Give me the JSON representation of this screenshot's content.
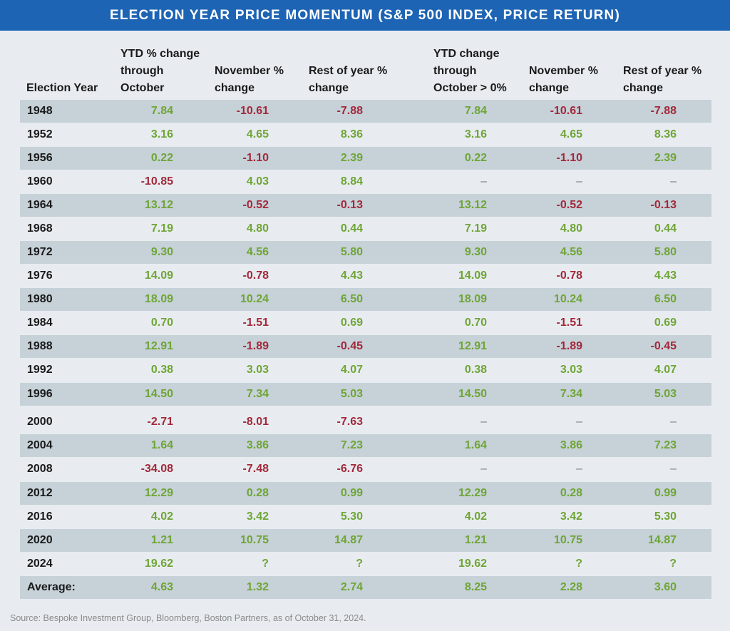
{
  "title": "ELECTION YEAR PRICE MOMENTUM (S&P 500 INDEX, PRICE RETURN)",
  "headers": [
    "Election Year",
    "YTD % change through October",
    "November % change",
    "Rest of year % change",
    "YTD change through October > 0%",
    "November % change",
    "Rest of year % change"
  ],
  "rows": [
    [
      "1948",
      "7.84",
      "-10.61",
      "-7.88",
      "7.84",
      "-10.61",
      "-7.88"
    ],
    [
      "1952",
      "3.16",
      "4.65",
      "8.36",
      "3.16",
      "4.65",
      "8.36"
    ],
    [
      "1956",
      "0.22",
      "-1.10",
      "2.39",
      "0.22",
      "-1.10",
      "2.39"
    ],
    [
      "1960",
      "-10.85",
      "4.03",
      "8.84",
      "–",
      "–",
      "–"
    ],
    [
      "1964",
      "13.12",
      "-0.52",
      "-0.13",
      "13.12",
      "-0.52",
      "-0.13"
    ],
    [
      "1968",
      "7.19",
      "4.80",
      "0.44",
      "7.19",
      "4.80",
      "0.44"
    ],
    [
      "1972",
      "9.30",
      "4.56",
      "5.80",
      "9.30",
      "4.56",
      "5.80"
    ],
    [
      "1976",
      "14.09",
      "-0.78",
      "4.43",
      "14.09",
      "-0.78",
      "4.43"
    ],
    [
      "1980",
      "18.09",
      "10.24",
      "6.50",
      "18.09",
      "10.24",
      "6.50"
    ],
    [
      "1984",
      "0.70",
      "-1.51",
      "0.69",
      "0.70",
      "-1.51",
      "0.69"
    ],
    [
      "1988",
      "12.91",
      "-1.89",
      "-0.45",
      "12.91",
      "-1.89",
      "-0.45"
    ],
    [
      "1992",
      "0.38",
      "3.03",
      "4.07",
      "0.38",
      "3.03",
      "4.07"
    ],
    [
      "1996",
      "14.50",
      "7.34",
      "5.03",
      "14.50",
      "7.34",
      "5.03"
    ],
    [
      "2000",
      "-2.71",
      "-8.01",
      "-7.63",
      "–",
      "–",
      "–"
    ],
    [
      "2004",
      "1.64",
      "3.86",
      "7.23",
      "1.64",
      "3.86",
      "7.23"
    ],
    [
      "2008",
      "-34.08",
      "-7.48",
      "-6.76",
      "–",
      "–",
      "–"
    ],
    [
      "2012",
      "12.29",
      "0.28",
      "0.99",
      "12.29",
      "0.28",
      "0.99"
    ],
    [
      "2016",
      "4.02",
      "3.42",
      "5.30",
      "4.02",
      "3.42",
      "5.30"
    ],
    [
      "2020",
      "1.21",
      "10.75",
      "14.87",
      "1.21",
      "10.75",
      "14.87"
    ],
    [
      "2024",
      "19.62",
      "?",
      "?",
      "19.62",
      "?",
      "?"
    ],
    [
      "Average:",
      "4.63",
      "1.32",
      "2.74",
      "8.25",
      "2.28",
      "3.60"
    ]
  ],
  "source": "Source: Bespoke Investment Group, Bloomberg, Boston Partners, as of October 31, 2024.",
  "colors": {
    "positive": "#6fa535",
    "negative": "#a3283a",
    "title_bar": "#1e64b4",
    "row_shade": "#c6d1d8"
  },
  "chart_data": {
    "type": "table",
    "title": "ELECTION YEAR PRICE MOMENTUM (S&P 500 INDEX, PRICE RETURN)",
    "columns": [
      "Election Year",
      "YTD % change through October",
      "November % change",
      "Rest of year % change",
      "YTD change through October > 0%",
      "November % change",
      "Rest of year % change"
    ]
  }
}
